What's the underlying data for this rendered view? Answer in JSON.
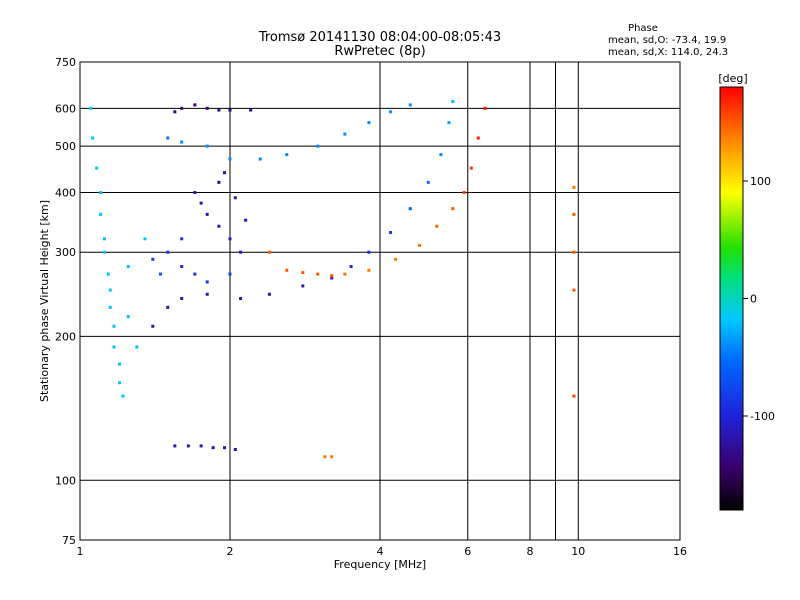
{
  "chart_data": {
    "type": "scatter",
    "title": "Tromsø 20141130 08:04:00-08:05:43",
    "subtitle": "RwPretec (8p)",
    "xlabel": "Frequency [MHz]",
    "ylabel": "Stationary phase Virtual Height [km]",
    "x_scale": "log",
    "y_scale": "log",
    "xlim": [
      1,
      16
    ],
    "ylim": [
      75,
      750
    ],
    "x_ticks": [
      1,
      2,
      4,
      6,
      8,
      10,
      16
    ],
    "x_minor_ticks": [
      9
    ],
    "y_ticks": [
      75,
      100,
      200,
      300,
      400,
      500,
      600,
      750
    ],
    "grid": true,
    "stats": {
      "heading": "Phase",
      "line_o": "mean, sd,O: -73.4, 19.9",
      "line_x": "mean, sd,X: 114.0, 24.3"
    },
    "colorbar": {
      "unit": "[deg]",
      "range": [
        -180,
        180
      ],
      "ticks": [
        100,
        0,
        -100
      ]
    },
    "series": [
      {
        "points": [
          [
            1.05,
            600,
            -20
          ],
          [
            1.06,
            520,
            -20
          ],
          [
            1.08,
            450,
            -20
          ],
          [
            1.1,
            400,
            -20
          ],
          [
            1.1,
            360,
            -20
          ],
          [
            1.12,
            320,
            -20
          ],
          [
            1.12,
            300,
            -20
          ],
          [
            1.14,
            270,
            -20
          ],
          [
            1.15,
            250,
            -20
          ],
          [
            1.15,
            230,
            -20
          ],
          [
            1.17,
            210,
            -20
          ],
          [
            1.17,
            190,
            -20
          ],
          [
            1.2,
            175,
            -20
          ],
          [
            1.2,
            160,
            -20
          ],
          [
            1.22,
            150,
            -20
          ],
          [
            1.25,
            280,
            -20
          ],
          [
            1.25,
            220,
            -20
          ],
          [
            1.3,
            190,
            -20
          ],
          [
            1.35,
            320,
            -20
          ],
          [
            1.4,
            210,
            -120
          ],
          [
            1.5,
            230,
            -120
          ],
          [
            1.6,
            240,
            -120
          ],
          [
            1.8,
            245,
            -120
          ],
          [
            2.1,
            240,
            -120
          ],
          [
            2.4,
            245,
            -120
          ],
          [
            2.8,
            255,
            -115
          ],
          [
            3.2,
            265,
            -110
          ],
          [
            3.5,
            280,
            -100
          ],
          [
            3.8,
            300,
            -95
          ],
          [
            4.2,
            330,
            -85
          ],
          [
            4.6,
            370,
            -60
          ],
          [
            5.0,
            420,
            -50
          ],
          [
            5.3,
            480,
            -40
          ],
          [
            5.5,
            560,
            -30
          ],
          [
            5.6,
            620,
            -25
          ],
          [
            3.4,
            270,
            140
          ],
          [
            3.8,
            275,
            140
          ],
          [
            4.3,
            290,
            140
          ],
          [
            4.8,
            310,
            140
          ],
          [
            5.2,
            340,
            145
          ],
          [
            5.6,
            370,
            150
          ],
          [
            5.9,
            400,
            160
          ],
          [
            6.1,
            450,
            165
          ],
          [
            6.3,
            520,
            170
          ],
          [
            6.5,
            600,
            175
          ],
          [
            2.4,
            300,
            150
          ],
          [
            2.6,
            275,
            150
          ],
          [
            2.8,
            272,
            150
          ],
          [
            3.0,
            270,
            150
          ],
          [
            3.2,
            268,
            150
          ],
          [
            1.55,
            590,
            -140
          ],
          [
            1.6,
            600,
            -140
          ],
          [
            1.7,
            610,
            -145
          ],
          [
            1.8,
            600,
            -140
          ],
          [
            1.9,
            595,
            -130
          ],
          [
            2.0,
            595,
            -130
          ],
          [
            2.2,
            595,
            -120
          ],
          [
            1.5,
            520,
            -50
          ],
          [
            1.6,
            510,
            -40
          ],
          [
            1.8,
            500,
            -40
          ],
          [
            2.0,
            470,
            -40
          ],
          [
            2.3,
            470,
            -40
          ],
          [
            2.6,
            480,
            -40
          ],
          [
            3.0,
            500,
            -40
          ],
          [
            3.4,
            530,
            -40
          ],
          [
            3.8,
            560,
            -40
          ],
          [
            4.2,
            590,
            -40
          ],
          [
            4.6,
            610,
            -40
          ],
          [
            1.7,
            400,
            -120
          ],
          [
            1.75,
            380,
            -120
          ],
          [
            1.8,
            360,
            -120
          ],
          [
            1.9,
            340,
            -115
          ],
          [
            2.0,
            320,
            -110
          ],
          [
            2.1,
            300,
            -110
          ],
          [
            1.6,
            280,
            -100
          ],
          [
            1.7,
            270,
            -90
          ],
          [
            1.8,
            260,
            -90
          ],
          [
            2.0,
            270,
            -80
          ],
          [
            1.5,
            300,
            -85
          ],
          [
            1.6,
            320,
            -95
          ],
          [
            1.4,
            290,
            -80
          ],
          [
            1.45,
            270,
            -70
          ],
          [
            1.9,
            420,
            -130
          ],
          [
            1.95,
            440,
            -130
          ],
          [
            2.05,
            390,
            -120
          ],
          [
            2.15,
            350,
            -115
          ],
          [
            1.55,
            118,
            -120
          ],
          [
            1.65,
            118,
            -120
          ],
          [
            1.75,
            118,
            -120
          ],
          [
            1.85,
            117,
            -120
          ],
          [
            1.95,
            117,
            -120
          ],
          [
            2.05,
            116,
            -120
          ],
          [
            3.1,
            112,
            140
          ],
          [
            3.2,
            112,
            140
          ],
          [
            9.8,
            410,
            140
          ],
          [
            9.8,
            360,
            150
          ],
          [
            9.8,
            300,
            150
          ],
          [
            9.8,
            250,
            150
          ],
          [
            9.8,
            150,
            160
          ]
        ]
      }
    ]
  }
}
